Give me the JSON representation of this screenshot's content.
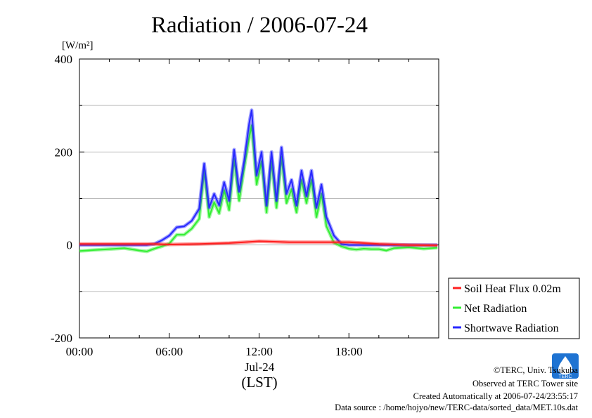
{
  "chart_data": {
    "type": "line",
    "title": "Radiation / 2006-07-24",
    "ylabel": "[W/m²]",
    "ylim": [
      -200,
      400
    ],
    "y_ticks": [
      "400",
      "200",
      "0",
      "-200"
    ],
    "x_ticks": [
      "00:00",
      "06:00",
      "12:00",
      "18:00"
    ],
    "x_date_label": "Jul-24",
    "xlabel": "(LST)",
    "grid": true,
    "legend_position": "right-bottom",
    "series": [
      {
        "name": "Soil Heat Flux 0.02m",
        "color": "#ff2020",
        "x": [
          "00:00",
          "02:00",
          "04:00",
          "05:00",
          "06:00",
          "08:00",
          "10:00",
          "11:00",
          "12:00",
          "13:00",
          "14:00",
          "16:00",
          "17:00",
          "18:00",
          "19:00",
          "20:00",
          "22:00",
          "23:55"
        ],
        "values": [
          2,
          2,
          2,
          2,
          1,
          2,
          4,
          6,
          8,
          7,
          6,
          6,
          6,
          6,
          4,
          2,
          0,
          -1
        ]
      },
      {
        "name": "Net Radiation",
        "color": "#33ee33",
        "x": [
          "00:00",
          "00:30",
          "01:00",
          "02:00",
          "03:00",
          "04:00",
          "04:30",
          "05:00",
          "05:30",
          "06:00",
          "06:30",
          "07:00",
          "07:30",
          "08:00",
          "08:20",
          "08:40",
          "09:00",
          "09:20",
          "09:40",
          "10:00",
          "10:20",
          "10:40",
          "11:00",
          "11:20",
          "11:30",
          "11:50",
          "12:10",
          "12:30",
          "12:50",
          "13:10",
          "13:30",
          "13:50",
          "14:10",
          "14:30",
          "14:50",
          "15:10",
          "15:30",
          "15:50",
          "16:10",
          "16:30",
          "17:00",
          "17:30",
          "18:00",
          "18:30",
          "19:00",
          "19:30",
          "20:00",
          "20:30",
          "21:00",
          "22:00",
          "23:00",
          "23:55"
        ],
        "values": [
          -13,
          -12,
          -11,
          -9,
          -7,
          -12,
          -14,
          -8,
          -3,
          3,
          22,
          22,
          35,
          56,
          160,
          60,
          92,
          68,
          118,
          75,
          185,
          95,
          165,
          230,
          257,
          130,
          180,
          70,
          180,
          80,
          190,
          90,
          120,
          70,
          140,
          90,
          140,
          60,
          110,
          40,
          5,
          -3,
          -8,
          -10,
          -8,
          -9,
          -9,
          -12,
          -7,
          -5,
          -8,
          -6
        ]
      },
      {
        "name": "Shortwave Radiation",
        "color": "#2828ff",
        "x": [
          "00:00",
          "02:00",
          "04:00",
          "04:30",
          "05:00",
          "05:30",
          "06:00",
          "06:30",
          "07:00",
          "07:30",
          "08:00",
          "08:20",
          "08:40",
          "09:00",
          "09:20",
          "09:40",
          "10:00",
          "10:20",
          "10:40",
          "11:00",
          "11:20",
          "11:30",
          "11:50",
          "12:10",
          "12:30",
          "12:50",
          "13:10",
          "13:30",
          "13:50",
          "14:10",
          "14:30",
          "14:50",
          "15:10",
          "15:30",
          "15:50",
          "16:10",
          "16:30",
          "17:00",
          "17:30",
          "18:00",
          "18:30",
          "20:00",
          "22:00",
          "23:55"
        ],
        "values": [
          0,
          0,
          0,
          0,
          2,
          10,
          20,
          38,
          40,
          52,
          78,
          175,
          80,
          110,
          85,
          135,
          95,
          205,
          115,
          180,
          260,
          290,
          150,
          200,
          85,
          200,
          95,
          210,
          110,
          140,
          85,
          160,
          105,
          160,
          80,
          130,
          60,
          20,
          2,
          0,
          0,
          0,
          0,
          0
        ]
      }
    ],
    "legend": [
      "Soil Heat Flux 0.02m",
      "Net Radiation",
      "Shortwave Radiation"
    ]
  },
  "footer": {
    "copyright": "©TERC, Univ. Tsukuba",
    "observed": "Observed at TERC Tower site",
    "created": "Created Automatically at 2006-07-24/23:55:17",
    "source": "Data source : /home/hojyo/new/TERC-data/sorted_data/MET.10s.dat",
    "logo_text": "TERC"
  }
}
